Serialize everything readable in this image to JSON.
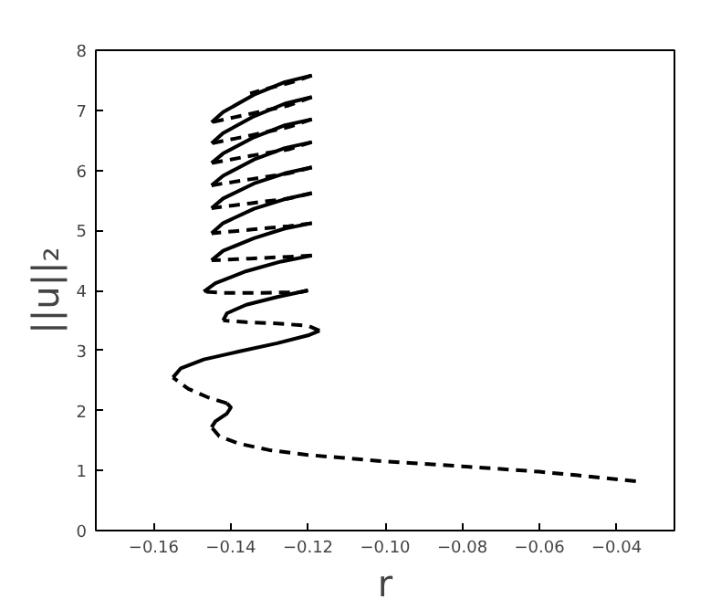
{
  "chart_data": {
    "type": "line",
    "xlabel": "r",
    "ylabel": "||u||₂",
    "xlim": [
      -0.175,
      -0.025
    ],
    "ylim": [
      0,
      8
    ],
    "xticks": [
      {
        "value": -0.16,
        "label": "−0.16"
      },
      {
        "value": -0.14,
        "label": "−0.14"
      },
      {
        "value": -0.12,
        "label": "−0.12"
      },
      {
        "value": -0.1,
        "label": "−0.10"
      },
      {
        "value": -0.08,
        "label": "−0.08"
      },
      {
        "value": -0.06,
        "label": "−0.06"
      },
      {
        "value": -0.04,
        "label": "−0.04"
      }
    ],
    "yticks": [
      0,
      1,
      2,
      3,
      4,
      5,
      6,
      7,
      8
    ],
    "grid": false,
    "marker": "none",
    "series": [
      {
        "color": "#000000",
        "line_style": "dashed",
        "x": [
          -0.035,
          -0.05,
          -0.06,
          -0.08,
          -0.1,
          -0.12,
          -0.13,
          -0.138,
          -0.143,
          -0.145
        ],
        "values": [
          0.82,
          0.92,
          0.98,
          1.07,
          1.15,
          1.26,
          1.34,
          1.45,
          1.57,
          1.72
        ]
      },
      {
        "color": "#000000",
        "line_style": "solid",
        "x": [
          -0.145,
          -0.144,
          -0.141,
          -0.14,
          -0.141
        ],
        "values": [
          1.72,
          1.82,
          1.95,
          2.05,
          2.12
        ]
      },
      {
        "color": "#000000",
        "line_style": "dashed",
        "x": [
          -0.141,
          -0.146,
          -0.151,
          -0.155
        ],
        "values": [
          2.12,
          2.22,
          2.36,
          2.55
        ]
      },
      {
        "color": "#000000",
        "line_style": "solid",
        "x": [
          -0.155,
          -0.153,
          -0.147,
          -0.138,
          -0.128,
          -0.12,
          -0.117
        ],
        "values": [
          2.55,
          2.7,
          2.85,
          2.98,
          3.12,
          3.25,
          3.33
        ]
      },
      {
        "color": "#000000",
        "line_style": "dashed",
        "x": [
          -0.117,
          -0.12,
          -0.128,
          -0.136,
          -0.142
        ],
        "values": [
          3.33,
          3.41,
          3.45,
          3.47,
          3.5
        ]
      },
      {
        "color": "#000000",
        "line_style": "solid",
        "x": [
          -0.142,
          -0.141,
          -0.136,
          -0.128,
          -0.12
        ],
        "values": [
          3.5,
          3.62,
          3.76,
          3.89,
          4.0
        ]
      },
      {
        "color": "#000000",
        "line_style": "dashed",
        "x": [
          -0.12,
          -0.122,
          -0.132,
          -0.142,
          -0.147
        ],
        "values": [
          4.0,
          3.97,
          3.96,
          3.96,
          3.98
        ]
      },
      {
        "color": "#000000",
        "line_style": "solid",
        "x": [
          -0.147,
          -0.144,
          -0.136,
          -0.127,
          -0.119
        ],
        "values": [
          3.98,
          4.12,
          4.32,
          4.48,
          4.58
        ]
      },
      {
        "color": "#000000",
        "line_style": "dashed",
        "x": [
          -0.119,
          -0.125,
          -0.135,
          -0.145
        ],
        "values": [
          4.58,
          4.56,
          4.53,
          4.5
        ]
      },
      {
        "color": "#000000",
        "line_style": "solid",
        "x": [
          -0.145,
          -0.142,
          -0.134,
          -0.126,
          -0.119
        ],
        "values": [
          4.5,
          4.66,
          4.87,
          5.03,
          5.12
        ]
      },
      {
        "color": "#000000",
        "line_style": "dashed",
        "x": [
          -0.119,
          -0.125,
          -0.135,
          -0.145
        ],
        "values": [
          5.12,
          5.07,
          5.01,
          4.95
        ]
      },
      {
        "color": "#000000",
        "line_style": "solid",
        "x": [
          -0.145,
          -0.142,
          -0.134,
          -0.126,
          -0.119
        ],
        "values": [
          4.95,
          5.12,
          5.36,
          5.52,
          5.62
        ]
      },
      {
        "color": "#000000",
        "line_style": "dashed",
        "x": [
          -0.119,
          -0.125,
          -0.135,
          -0.145
        ],
        "values": [
          5.62,
          5.53,
          5.45,
          5.37
        ]
      },
      {
        "color": "#000000",
        "line_style": "solid",
        "x": [
          -0.145,
          -0.142,
          -0.134,
          -0.126,
          -0.119
        ],
        "values": [
          5.37,
          5.53,
          5.78,
          5.95,
          6.05
        ]
      },
      {
        "color": "#000000",
        "line_style": "dashed",
        "x": [
          -0.119,
          -0.125,
          -0.135,
          -0.145
        ],
        "values": [
          6.05,
          5.95,
          5.85,
          5.75
        ]
      },
      {
        "color": "#000000",
        "line_style": "solid",
        "x": [
          -0.145,
          -0.142,
          -0.134,
          -0.126,
          -0.119
        ],
        "values": [
          5.75,
          5.91,
          6.18,
          6.37,
          6.47
        ]
      },
      {
        "color": "#000000",
        "line_style": "dashed",
        "x": [
          -0.119,
          -0.125,
          -0.135,
          -0.145
        ],
        "values": [
          6.47,
          6.35,
          6.24,
          6.12
        ]
      },
      {
        "color": "#000000",
        "line_style": "solid",
        "x": [
          -0.145,
          -0.142,
          -0.134,
          -0.126,
          -0.119
        ],
        "values": [
          6.12,
          6.28,
          6.55,
          6.75,
          6.85
        ]
      },
      {
        "color": "#000000",
        "line_style": "dashed",
        "x": [
          -0.119,
          -0.125,
          -0.135,
          -0.145
        ],
        "values": [
          6.85,
          6.72,
          6.58,
          6.45
        ]
      },
      {
        "color": "#000000",
        "line_style": "solid",
        "x": [
          -0.145,
          -0.142,
          -0.134,
          -0.126,
          -0.119
        ],
        "values": [
          6.45,
          6.62,
          6.9,
          7.11,
          7.22
        ]
      },
      {
        "color": "#000000",
        "line_style": "dashed",
        "x": [
          -0.119,
          -0.125,
          -0.135,
          -0.145
        ],
        "values": [
          7.22,
          7.08,
          6.94,
          6.8
        ]
      },
      {
        "color": "#000000",
        "line_style": "solid",
        "x": [
          -0.145,
          -0.142,
          -0.134,
          -0.126,
          -0.119
        ],
        "values": [
          6.8,
          6.97,
          7.26,
          7.47,
          7.58
        ]
      },
      {
        "color": "#000000",
        "line_style": "dashed",
        "x": [
          -0.119,
          -0.124,
          -0.13,
          -0.135
        ],
        "values": [
          7.58,
          7.47,
          7.37,
          7.28
        ]
      }
    ]
  }
}
